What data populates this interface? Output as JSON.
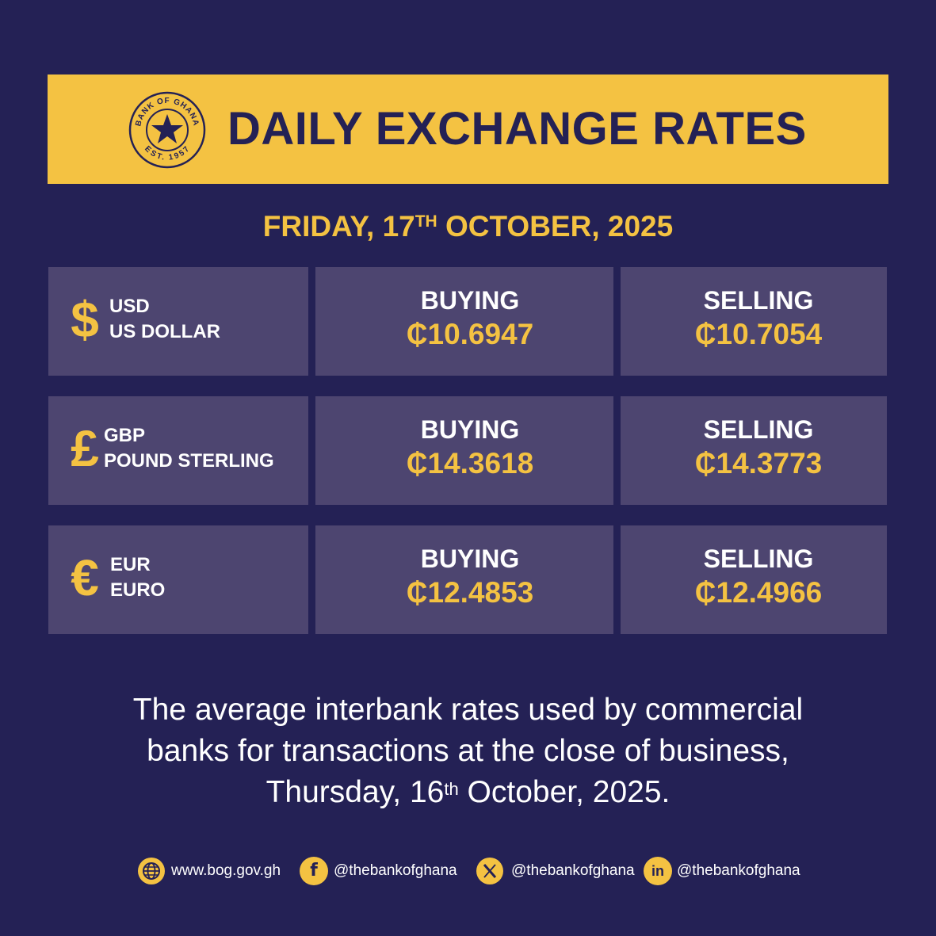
{
  "banner": {
    "title": "DAILY EXCHANGE RATES",
    "logo": {
      "icon": "bank-of-ghana-seal",
      "top_text": "BANK OF GHANA",
      "bottom_text": "EST. 1957"
    }
  },
  "date": {
    "prefix": "FRIDAY, 17",
    "suffix": "TH",
    "rest": " OCTOBER, 2025"
  },
  "rates": [
    {
      "symbol": "$",
      "code": "USD",
      "name": "US DOLLAR",
      "buying_label": "BUYING",
      "buying": "₵10.6947",
      "selling_label": "SELLING",
      "selling": "₵10.7054"
    },
    {
      "symbol": "£",
      "code": "GBP",
      "name": "POUND STERLING",
      "buying_label": "BUYING",
      "buying": "₵14.3618",
      "selling_label": "SELLING",
      "selling": "₵14.3773"
    },
    {
      "symbol": "€",
      "code": "EUR",
      "name": "EURO",
      "buying_label": "BUYING",
      "buying": "₵12.4853",
      "selling_label": "SELLING",
      "selling": "₵12.4966"
    }
  ],
  "note": {
    "line1": "The average interbank rates used by commercial",
    "line2": "banks for transactions at the close of business,",
    "line3_prefix": "Thursday, 16",
    "line3_suffix": "th",
    "line3_rest": " October, 2025."
  },
  "footer": [
    {
      "icon": "globe-icon",
      "text": "www.bog.gov.gh"
    },
    {
      "icon": "facebook-icon",
      "text": "@thebankofghana"
    },
    {
      "icon": "x-icon",
      "text": "@thebankofghana"
    },
    {
      "icon": "linkedin-icon",
      "text": "@thebankofghana"
    }
  ],
  "colors": {
    "background": "#242155",
    "accent": "#f4c242",
    "cell": "#4d4570"
  }
}
